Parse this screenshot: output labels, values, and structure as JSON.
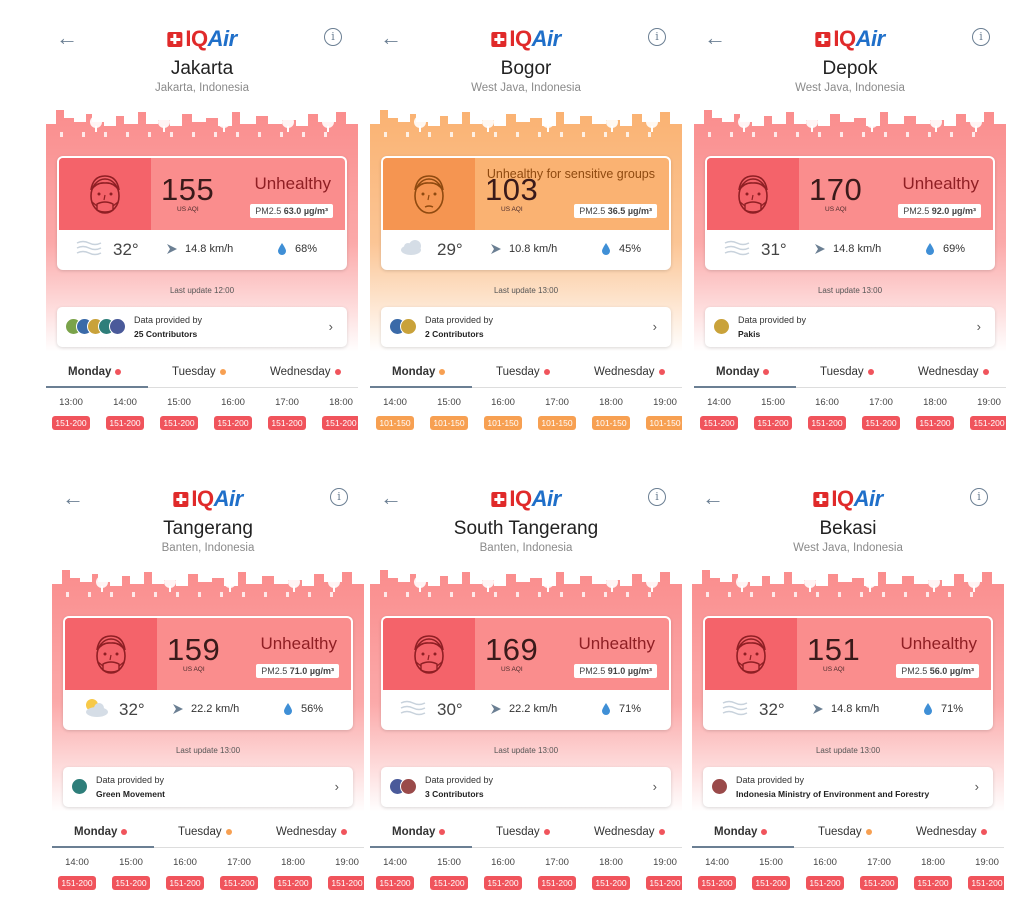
{
  "colors": {
    "unhealthy_dark": "#f4636a",
    "unhealthy_light": "#fa8d8d",
    "unhealthy_pill": "#f0545c",
    "sensitive_dark": "#f59551",
    "sensitive_light": "#fab272",
    "sensitive_pill": "#f7a052",
    "unhealthy_status_text": "#8f1f24",
    "sensitive_status_text": "#8f4a10"
  },
  "brand": {
    "logo_text_a": "IQ",
    "logo_text_b": "Air"
  },
  "panels": [
    {
      "city": "Jakarta",
      "region": "Jakarta, Indonesia",
      "aqi": "155",
      "aqi_unit": "US AQI",
      "status": "Unhealthy",
      "level": "unhealthy",
      "pm_label": "PM2.5",
      "pm_value": "63.0 µg/m³",
      "weather_icon": "haze-icon",
      "temp": "32°",
      "wind": "14.8 km/h",
      "humidity": "68%",
      "last_update": "Last update 12:00",
      "provider_l1": "Data provided by",
      "provider_l2": "25 Contributors",
      "days": [
        {
          "name": "Monday",
          "dot": "unhealthy"
        },
        {
          "name": "Tuesday",
          "dot": "sensitive"
        },
        {
          "name": "Wednesday",
          "dot": "unhealthy"
        }
      ],
      "hours": [
        {
          "t": "13:00",
          "v": "151-200"
        },
        {
          "t": "14:00",
          "v": "151-200"
        },
        {
          "t": "15:00",
          "v": "151-200"
        },
        {
          "t": "16:00",
          "v": "151-200"
        },
        {
          "t": "17:00",
          "v": "151-200"
        },
        {
          "t": "18:00",
          "v": "151-200"
        }
      ]
    },
    {
      "city": "Bogor",
      "region": "West Java, Indonesia",
      "aqi": "103",
      "aqi_unit": "US AQI",
      "status": "Unhealthy for sensitive groups",
      "level": "sensitive",
      "pm_label": "PM2.5",
      "pm_value": "36.5 µg/m³",
      "weather_icon": "cloud-icon",
      "temp": "29°",
      "wind": "10.8 km/h",
      "humidity": "45%",
      "last_update": "Last update 13:00",
      "provider_l1": "Data provided by",
      "provider_l2": "2 Contributors",
      "days": [
        {
          "name": "Monday",
          "dot": "sensitive"
        },
        {
          "name": "Tuesday",
          "dot": "unhealthy"
        },
        {
          "name": "Wednesday",
          "dot": "unhealthy"
        }
      ],
      "hours": [
        {
          "t": "14:00",
          "v": "101-150"
        },
        {
          "t": "15:00",
          "v": "101-150"
        },
        {
          "t": "16:00",
          "v": "101-150"
        },
        {
          "t": "17:00",
          "v": "101-150"
        },
        {
          "t": "18:00",
          "v": "101-150"
        },
        {
          "t": "19:00",
          "v": "101-150"
        }
      ]
    },
    {
      "city": "Depok",
      "region": "West Java, Indonesia",
      "aqi": "170",
      "aqi_unit": "US AQI",
      "status": "Unhealthy",
      "level": "unhealthy",
      "pm_label": "PM2.5",
      "pm_value": "92.0 µg/m³",
      "weather_icon": "haze-icon",
      "temp": "31°",
      "wind": "14.8 km/h",
      "humidity": "69%",
      "last_update": "Last update 13:00",
      "provider_l1": "Data provided by",
      "provider_l2": "Pakis",
      "days": [
        {
          "name": "Monday",
          "dot": "unhealthy"
        },
        {
          "name": "Tuesday",
          "dot": "unhealthy"
        },
        {
          "name": "Wednesday",
          "dot": "unhealthy"
        }
      ],
      "hours": [
        {
          "t": "14:00",
          "v": "151-200"
        },
        {
          "t": "15:00",
          "v": "151-200"
        },
        {
          "t": "16:00",
          "v": "151-200"
        },
        {
          "t": "17:00",
          "v": "151-200"
        },
        {
          "t": "18:00",
          "v": "151-200"
        },
        {
          "t": "19:00",
          "v": "151-200"
        }
      ]
    },
    {
      "city": "Tangerang",
      "region": "Banten, Indonesia",
      "aqi": "159",
      "aqi_unit": "US AQI",
      "status": "Unhealthy",
      "level": "unhealthy",
      "pm_label": "PM2.5",
      "pm_value": "71.0 µg/m³",
      "weather_icon": "partly-cloudy-icon",
      "temp": "32°",
      "wind": "22.2 km/h",
      "humidity": "56%",
      "last_update": "Last update 13:00",
      "provider_l1": "Data provided by",
      "provider_l2": "Green Movement",
      "days": [
        {
          "name": "Monday",
          "dot": "unhealthy"
        },
        {
          "name": "Tuesday",
          "dot": "sensitive"
        },
        {
          "name": "Wednesday",
          "dot": "unhealthy"
        }
      ],
      "hours": [
        {
          "t": "14:00",
          "v": "151-200"
        },
        {
          "t": "15:00",
          "v": "151-200"
        },
        {
          "t": "16:00",
          "v": "151-200"
        },
        {
          "t": "17:00",
          "v": "151-200"
        },
        {
          "t": "18:00",
          "v": "151-200"
        },
        {
          "t": "19:00",
          "v": "151-200"
        }
      ]
    },
    {
      "city": "South Tangerang",
      "region": "Banten, Indonesia",
      "aqi": "169",
      "aqi_unit": "US AQI",
      "status": "Unhealthy",
      "level": "unhealthy",
      "pm_label": "PM2.5",
      "pm_value": "91.0 µg/m³",
      "weather_icon": "haze-icon",
      "temp": "30°",
      "wind": "22.2 km/h",
      "humidity": "71%",
      "last_update": "Last update 13:00",
      "provider_l1": "Data provided by",
      "provider_l2": "3 Contributors",
      "days": [
        {
          "name": "Monday",
          "dot": "unhealthy"
        },
        {
          "name": "Tuesday",
          "dot": "unhealthy"
        },
        {
          "name": "Wednesday",
          "dot": "unhealthy"
        }
      ],
      "hours": [
        {
          "t": "14:00",
          "v": "151-200"
        },
        {
          "t": "15:00",
          "v": "151-200"
        },
        {
          "t": "16:00",
          "v": "151-200"
        },
        {
          "t": "17:00",
          "v": "151-200"
        },
        {
          "t": "18:00",
          "v": "151-200"
        },
        {
          "t": "19:00",
          "v": "151-200"
        }
      ]
    },
    {
      "city": "Bekasi",
      "region": "West Java, Indonesia",
      "aqi": "151",
      "aqi_unit": "US AQI",
      "status": "Unhealthy",
      "level": "unhealthy",
      "pm_label": "PM2.5",
      "pm_value": "56.0 µg/m³",
      "weather_icon": "haze-icon",
      "temp": "32°",
      "wind": "14.8 km/h",
      "humidity": "71%",
      "last_update": "Last update 13:00",
      "provider_l1": "Data provided by",
      "provider_l2": "Indonesia Ministry of Environment and Forestry",
      "days": [
        {
          "name": "Monday",
          "dot": "unhealthy"
        },
        {
          "name": "Tuesday",
          "dot": "sensitive"
        },
        {
          "name": "Wednesday",
          "dot": "unhealthy"
        }
      ],
      "hours": [
        {
          "t": "14:00",
          "v": "151-200"
        },
        {
          "t": "15:00",
          "v": "151-200"
        },
        {
          "t": "16:00",
          "v": "151-200"
        },
        {
          "t": "17:00",
          "v": "151-200"
        },
        {
          "t": "18:00",
          "v": "151-200"
        },
        {
          "t": "19:00",
          "v": "151-200"
        }
      ]
    }
  ]
}
